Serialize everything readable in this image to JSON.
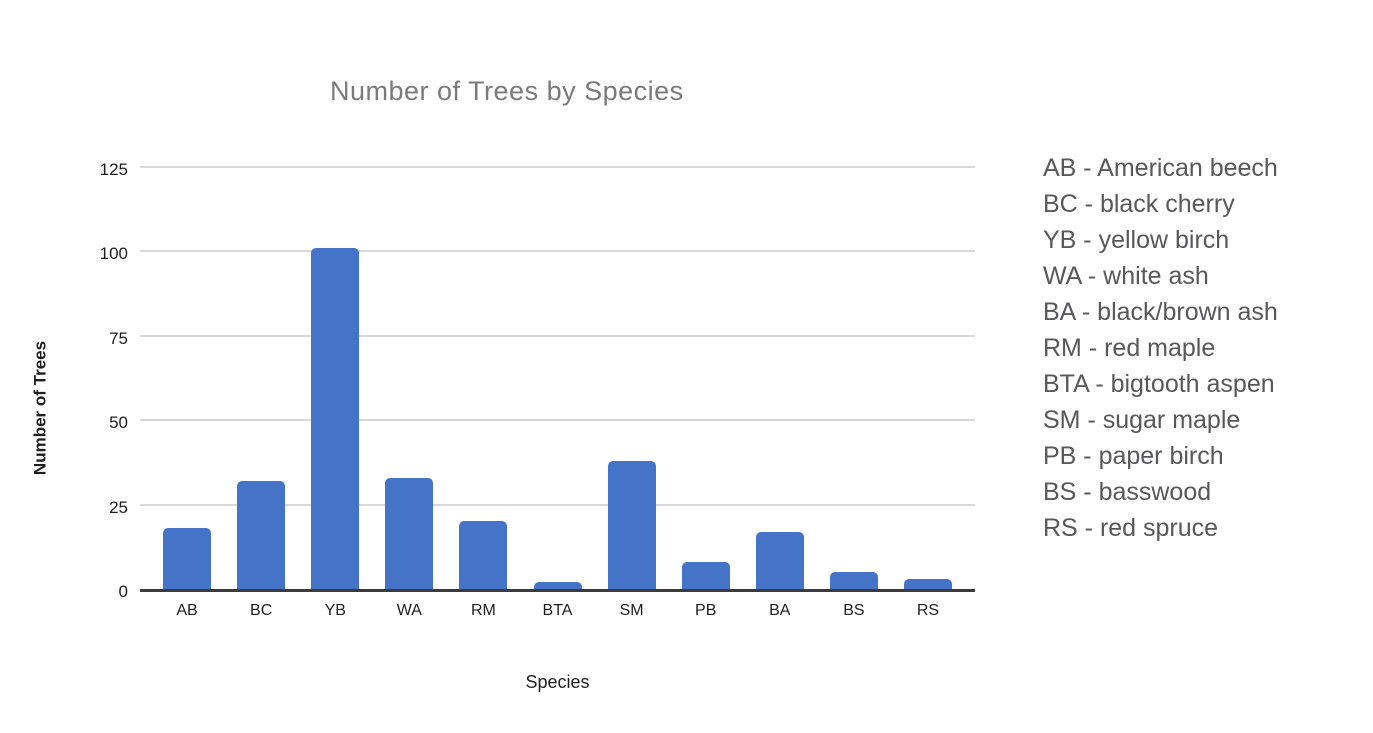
{
  "chart_data": {
    "type": "bar",
    "title": "Number of Trees by Species",
    "xlabel": "Species",
    "ylabel": "Number of Trees",
    "categories": [
      "AB",
      "BC",
      "YB",
      "WA",
      "RM",
      "BTA",
      "SM",
      "PB",
      "BA",
      "BS",
      "RS"
    ],
    "values": [
      18,
      32,
      101,
      33,
      20,
      2,
      38,
      8,
      17,
      5,
      3
    ],
    "ylim": [
      0,
      125
    ],
    "yticks": [
      0,
      25,
      50,
      75,
      100,
      125
    ],
    "grid": true,
    "legend_position": "right-outside"
  },
  "legend": {
    "items": [
      "AB - American beech",
      "BC - black cherry",
      "YB - yellow birch",
      "WA - white ash",
      "BA - black/brown ash",
      "RM - red maple",
      "BTA - bigtooth aspen",
      "SM - sugar maple",
      "PB - paper birch",
      "BS - basswood",
      "RS - red spruce"
    ]
  },
  "colors": {
    "bar": "#4573C7",
    "title_text": "#7A7A7A",
    "legend_text": "#58585A",
    "tick_text": "#1E1E1E",
    "gridline": "#D8D8D8",
    "axis_line": "#3B3B3B",
    "page_background": "#FFFFFF"
  }
}
